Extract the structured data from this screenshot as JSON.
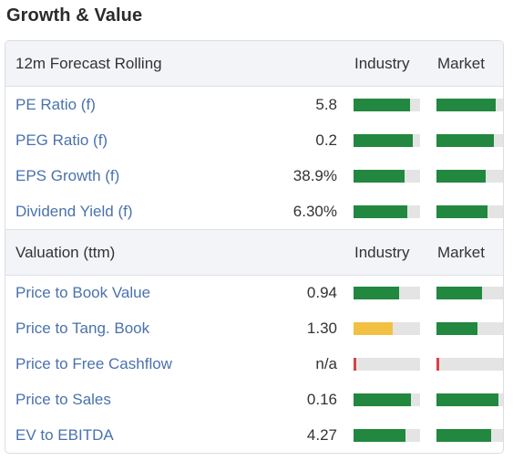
{
  "title": "Growth & Value",
  "colors": {
    "green": "#22873f",
    "yellow": "#f2c043",
    "red": "#d9414a",
    "track": "#e4e4e4",
    "link": "#4a72ac"
  },
  "sections": [
    {
      "label": "12m Forecast Rolling",
      "industry_label": "Industry",
      "market_label": "Market",
      "rows": [
        {
          "name": "PE Ratio (f)",
          "value": "5.8",
          "industry": 0.85,
          "industry_color": "green",
          "market": 0.89,
          "market_color": "green"
        },
        {
          "name": "PEG Ratio (f)",
          "value": "0.2",
          "industry": 0.89,
          "industry_color": "green",
          "market": 0.86,
          "market_color": "green"
        },
        {
          "name": "EPS Growth (f)",
          "value": "38.9%",
          "industry": 0.77,
          "industry_color": "green",
          "market": 0.74,
          "market_color": "green"
        },
        {
          "name": "Dividend Yield (f)",
          "value": "6.30%",
          "industry": 0.81,
          "industry_color": "green",
          "market": 0.77,
          "market_color": "green"
        }
      ]
    },
    {
      "label": "Valuation (ttm)",
      "industry_label": "Industry",
      "market_label": "Market",
      "rows": [
        {
          "name": "Price to Book Value",
          "value": "0.94",
          "industry": 0.68,
          "industry_color": "green",
          "market": 0.68,
          "market_color": "green"
        },
        {
          "name": "Price to Tang. Book",
          "value": "1.30",
          "industry": 0.59,
          "industry_color": "yellow",
          "market": 0.62,
          "market_color": "green"
        },
        {
          "name": "Price to Free Cashflow",
          "value": "n/a",
          "industry": 0.04,
          "industry_color": "red",
          "market": 0.04,
          "market_color": "red"
        },
        {
          "name": "Price to Sales",
          "value": "0.16",
          "industry": 0.86,
          "industry_color": "green",
          "market": 0.93,
          "market_color": "green"
        },
        {
          "name": "EV to EBITDA",
          "value": "4.27",
          "industry": 0.78,
          "industry_color": "green",
          "market": 0.82,
          "market_color": "green"
        }
      ]
    }
  ]
}
